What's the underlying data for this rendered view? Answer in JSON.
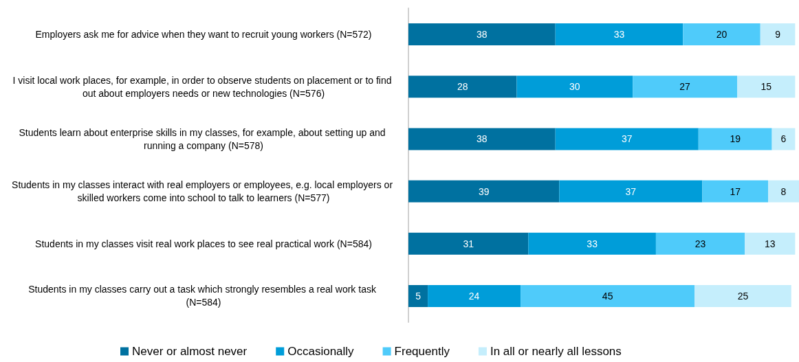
{
  "chart_data": {
    "type": "bar",
    "orientation": "horizontal",
    "stacked": true,
    "data_labels": true,
    "legend": "bottom",
    "categories": [
      "Employers ask me for advice when they want to recruit young workers (N=572)",
      "I visit local work places, for example, in order to observe students on placement or to find out about employers needs or new technologies (N=576)",
      "Students learn about enterprise skills in my classes, for example, about setting up and running a company (N=578)",
      "Students in my classes interact with real employers or employees, e.g. local employers or skilled workers come into school to talk to learners (N=577)",
      "Students in my classes visit real work places to see real practical work (N=584)",
      "Students in my classes carry out a task which strongly resembles a real work task (N=584)"
    ],
    "series": [
      {
        "name": "Never or almost never",
        "color": "#0071a0",
        "values": [
          38,
          28,
          38,
          39,
          31,
          5
        ]
      },
      {
        "name": "Occasionally",
        "color": "#009dd9",
        "values": [
          33,
          30,
          37,
          37,
          33,
          24
        ]
      },
      {
        "name": "Frequently",
        "color": "#4fcbfa",
        "values": [
          20,
          27,
          19,
          17,
          23,
          45
        ]
      },
      {
        "name": "In all or nearly all lessons",
        "color": "#c5eefc",
        "values": [
          9,
          15,
          6,
          8,
          13,
          25
        ]
      }
    ]
  }
}
